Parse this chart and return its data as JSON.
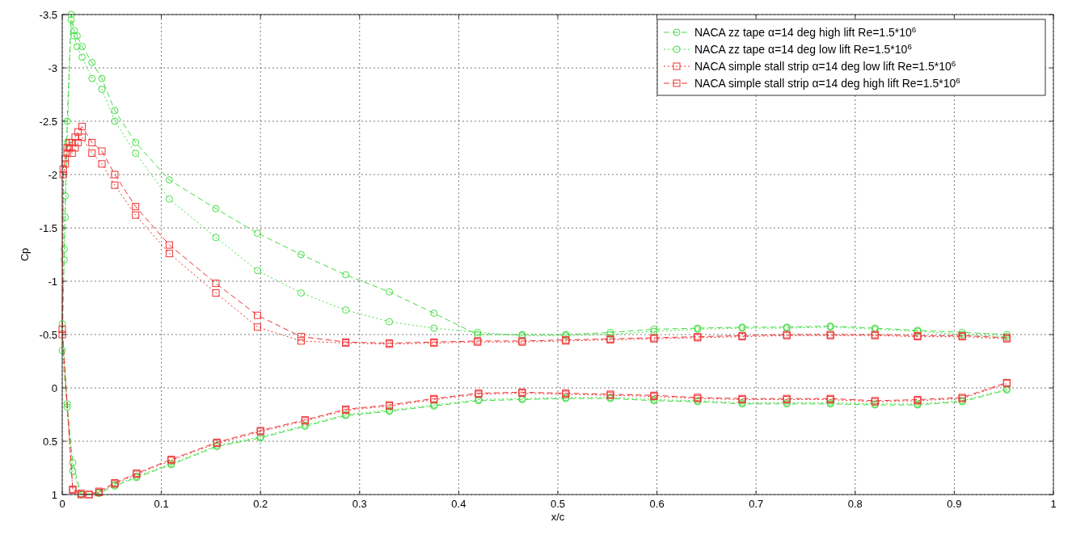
{
  "chart_data": {
    "type": "line",
    "xlabel": "x/c",
    "ylabel": "Cp",
    "xlim": [
      0,
      1
    ],
    "ylim": [
      1,
      -3.5
    ],
    "xticks": [
      0,
      0.1,
      0.2,
      0.3,
      0.4,
      0.5,
      0.6,
      0.7,
      0.8,
      0.9,
      1
    ],
    "yticks": [
      -3.5,
      -3,
      -2.5,
      -2,
      -1.5,
      -1,
      -0.5,
      0,
      0.5,
      1
    ],
    "grid": true,
    "legend": "top right",
    "series": [
      {
        "name": "NACA zz tape α=14 deg high lift Re=1.5*10$^{6}$",
        "color": "#44dd44",
        "marker": "circle",
        "line_style": "dashed",
        "x": [
          0.953,
          0.908,
          0.863,
          0.82,
          0.775,
          0.731,
          0.686,
          0.641,
          0.597,
          0.553,
          0.508,
          0.464,
          0.419,
          0.375,
          0.33,
          0.286,
          0.241,
          0.197,
          0.155,
          0.108,
          0.074,
          0.053,
          0.04,
          0.03,
          0.02,
          0.015,
          0.012,
          0.009,
          0.005,
          0.003,
          0.002,
          0,
          0.005,
          0.0106,
          0.019,
          0.027,
          0.037,
          0.053,
          0.075,
          0.11,
          0.156,
          0.2,
          0.245,
          0.286,
          0.33,
          0.375,
          0.42,
          0.464,
          0.508,
          0.553,
          0.597,
          0.641,
          0.686,
          0.731,
          0.775,
          0.82,
          0.863,
          0.908,
          0.953
        ],
        "values": [
          -0.5,
          -0.52,
          -0.54,
          -0.56,
          -0.58,
          -0.57,
          -0.57,
          -0.56,
          -0.55,
          -0.52,
          -0.5,
          -0.5,
          -0.5,
          -0.7,
          -0.9,
          -1.06,
          -1.25,
          -1.45,
          -1.68,
          -1.95,
          -2.3,
          -2.6,
          -2.9,
          -3.05,
          -3.2,
          -3.3,
          -3.35,
          -3.5,
          -2.5,
          -1.8,
          -1.3,
          -0.35,
          0.18,
          0.7,
          1.0,
          null,
          0.99,
          0.92,
          0.84,
          0.72,
          0.55,
          0.47,
          0.36,
          0.26,
          0.22,
          0.17,
          0.12,
          0.11,
          0.1,
          0.1,
          0.12,
          0.13,
          0.15,
          0.15,
          0.15,
          0.16,
          0.16,
          0.13,
          0.02
        ]
      },
      {
        "name": "NACA zz tape α=14 deg low lift Re=1.5*10$^{6}$",
        "color": "#44dd44",
        "marker": "circle",
        "line_style": "dotted",
        "x": [
          0.953,
          0.908,
          0.863,
          0.82,
          0.775,
          0.731,
          0.686,
          0.641,
          0.597,
          0.553,
          0.508,
          0.464,
          0.419,
          0.375,
          0.33,
          0.286,
          0.241,
          0.197,
          0.155,
          0.108,
          0.074,
          0.053,
          0.04,
          0.03,
          0.02,
          0.015,
          0.012,
          0.009,
          0.005,
          0.003,
          0.002,
          0,
          0.005,
          0.0106,
          0.019,
          0.027,
          0.037,
          0.053,
          0.075,
          0.11,
          0.156,
          0.2,
          0.245,
          0.286,
          0.33,
          0.375,
          0.42,
          0.464,
          0.508,
          0.553,
          0.597,
          0.641,
          0.686,
          0.731,
          0.775,
          0.82,
          0.863,
          0.908,
          0.953
        ],
        "values": [
          -0.48,
          -0.5,
          -0.53,
          -0.55,
          -0.57,
          -0.56,
          -0.56,
          -0.55,
          -0.53,
          -0.5,
          -0.49,
          -0.49,
          -0.52,
          -0.56,
          -0.62,
          -0.73,
          -0.89,
          -1.1,
          -1.41,
          -1.77,
          -2.2,
          -2.5,
          -2.8,
          -2.9,
          -3.1,
          -3.2,
          -3.3,
          -3.45,
          -2.3,
          -1.6,
          -1.2,
          -0.6,
          0.15,
          0.78,
          1.0,
          null,
          0.98,
          0.91,
          0.83,
          0.71,
          0.54,
          0.46,
          0.35,
          0.25,
          0.21,
          0.16,
          0.11,
          0.1,
          0.09,
          0.09,
          0.11,
          0.12,
          0.14,
          0.14,
          0.14,
          0.15,
          0.15,
          0.12,
          0.01
        ]
      },
      {
        "name": "NACA simple stall strip α=14 deg low lift Re=1.5*10$^{6}$",
        "color": "#ee3333",
        "marker": "square",
        "line_style": "dotted",
        "x": [
          0.953,
          0.908,
          0.863,
          0.82,
          0.775,
          0.731,
          0.686,
          0.641,
          0.597,
          0.553,
          0.508,
          0.464,
          0.419,
          0.375,
          0.33,
          0.286,
          0.241,
          0.197,
          0.155,
          0.108,
          0.074,
          0.053,
          0.04,
          0.03,
          0.02,
          0.016,
          0.013,
          0.01,
          0.007,
          0.005,
          0.003,
          0.001,
          0,
          0.0106,
          0.019,
          0.027,
          0.037,
          0.053,
          0.075,
          0.11,
          0.156,
          0.2,
          0.245,
          0.286,
          0.33,
          0.375,
          0.42,
          0.464,
          0.508,
          0.553,
          0.597,
          0.641,
          0.686,
          0.731,
          0.775,
          0.82,
          0.863,
          0.908,
          0.953
        ],
        "values": [
          -0.46,
          -0.48,
          -0.48,
          -0.49,
          -0.49,
          -0.49,
          -0.48,
          -0.47,
          -0.46,
          -0.45,
          -0.44,
          -0.43,
          -0.43,
          -0.42,
          -0.41,
          -0.42,
          -0.44,
          -0.57,
          -0.89,
          -1.26,
          -1.62,
          -1.9,
          -2.1,
          -2.2,
          -2.35,
          -2.3,
          -2.25,
          -2.2,
          -2.25,
          -2.2,
          -2.1,
          -2.0,
          -0.5,
          0.96,
          1.0,
          1.0,
          0.98,
          0.9,
          0.81,
          0.68,
          0.52,
          0.41,
          0.31,
          0.21,
          0.17,
          0.11,
          0.06,
          0.05,
          0.06,
          0.07,
          0.08,
          0.1,
          0.11,
          0.11,
          0.11,
          0.13,
          0.12,
          0.1,
          -0.04
        ]
      },
      {
        "name": "NACA simple stall strip α=14 deg high lift Re=1.5*10$^{6}$",
        "color": "#ee3333",
        "marker": "square",
        "line_style": "dashed",
        "x": [
          0.953,
          0.908,
          0.863,
          0.82,
          0.775,
          0.731,
          0.686,
          0.641,
          0.597,
          0.553,
          0.508,
          0.464,
          0.419,
          0.375,
          0.33,
          0.286,
          0.241,
          0.197,
          0.155,
          0.108,
          0.074,
          0.053,
          0.04,
          0.03,
          0.02,
          0.016,
          0.013,
          0.01,
          0.007,
          0.005,
          0.003,
          0.001,
          0,
          0.0106,
          0.019,
          0.027,
          0.037,
          0.053,
          0.075,
          0.11,
          0.156,
          0.2,
          0.245,
          0.286,
          0.33,
          0.375,
          0.42,
          0.464,
          0.508,
          0.553,
          0.597,
          0.641,
          0.686,
          0.731,
          0.775,
          0.82,
          0.863,
          0.908,
          0.953
        ],
        "values": [
          -0.47,
          -0.49,
          -0.49,
          -0.5,
          -0.5,
          -0.5,
          -0.49,
          -0.48,
          -0.47,
          -0.46,
          -0.45,
          -0.44,
          -0.44,
          -0.43,
          -0.42,
          -0.43,
          -0.48,
          -0.68,
          -0.98,
          -1.34,
          -1.7,
          -2.0,
          -2.22,
          -2.3,
          -2.45,
          -2.4,
          -2.35,
          -2.3,
          -2.3,
          -2.25,
          -2.15,
          -2.05,
          -0.55,
          0.95,
          0.99,
          1.0,
          0.97,
          0.89,
          0.8,
          0.67,
          0.51,
          0.4,
          0.3,
          0.2,
          0.16,
          0.1,
          0.05,
          0.04,
          0.05,
          0.06,
          0.07,
          0.09,
          0.1,
          0.1,
          0.1,
          0.12,
          0.11,
          0.09,
          -0.05
        ]
      }
    ]
  }
}
